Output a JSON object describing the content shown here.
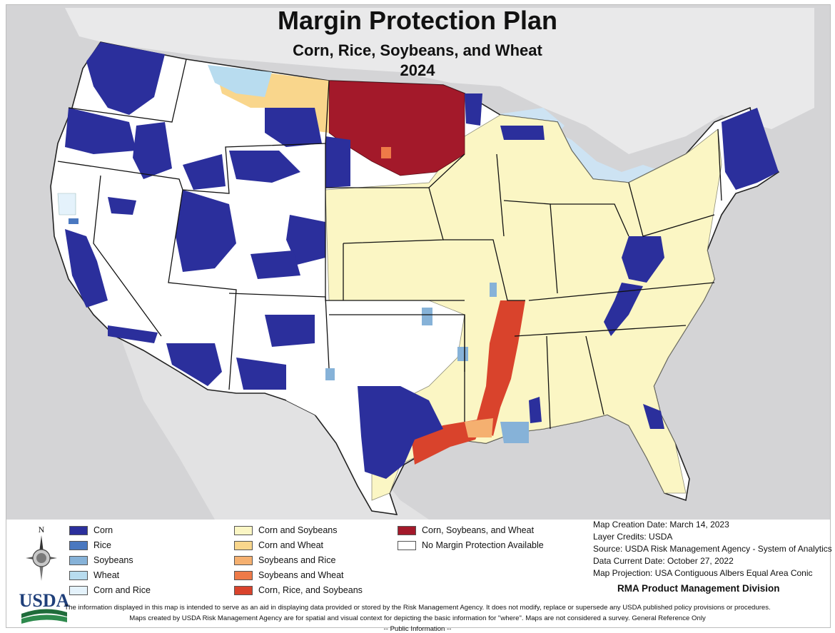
{
  "title": "Margin Protection Plan",
  "subtitle": "Corn, Rice, Soybeans, and Wheat",
  "year": "2024",
  "legend": [
    {
      "label": "Corn",
      "color": "#2b2f9c"
    },
    {
      "label": "Rice",
      "color": "#4a78c0"
    },
    {
      "label": "Soybeans",
      "color": "#86b2d8"
    },
    {
      "label": "Wheat",
      "color": "#b8dcef"
    },
    {
      "label": "Corn and Rice",
      "color": "#e4f2fb"
    },
    {
      "label": "Corn and Soybeans",
      "color": "#fbf6c4"
    },
    {
      "label": "Corn and Wheat",
      "color": "#f9d68c"
    },
    {
      "label": "Soybeans and Rice",
      "color": "#f5b070"
    },
    {
      "label": "Soybeans and Wheat",
      "color": "#ee7a48"
    },
    {
      "label": "Corn, Rice, and Soybeans",
      "color": "#d9432c"
    },
    {
      "label": "Corn, Soybeans, and Wheat",
      "color": "#a3192a"
    },
    {
      "label": "No Margin Protection Available",
      "color": "#ffffff"
    }
  ],
  "north_label": "N",
  "metadata": {
    "creation": "Map Creation Date: March 14, 2023",
    "credits": "Layer Credits: USDA",
    "source": "Source: USDA Risk Management Agency - System of Analytics",
    "data_date": "Data Current Date: October 27, 2022",
    "projection": "Map Projection:  USA Contiguous Albers Equal Area Conic"
  },
  "division": "RMA Product Management Division",
  "logo_text": "USDA",
  "disclaimer": [
    "The information displayed in this map is intended to serve as an aid in displaying data provided or stored by the Risk Management Agency. It does not modify, replace or supersede any USDA published policy provisions or procedures.",
    "Maps created by USDA Risk Management Agency are for spatial and visual context for depicting the basic information for \"where\". Maps are not considered a survey. General Reference Only",
    "-- Public Information --"
  ]
}
